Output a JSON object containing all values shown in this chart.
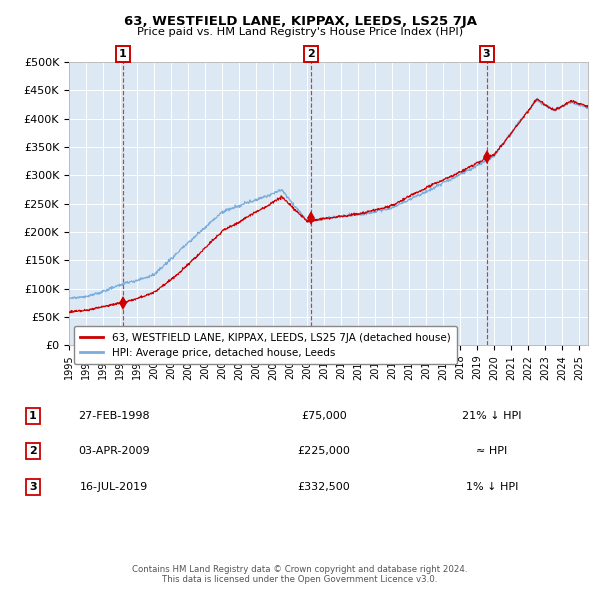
{
  "title": "63, WESTFIELD LANE, KIPPAX, LEEDS, LS25 7JA",
  "subtitle": "Price paid vs. HM Land Registry's House Price Index (HPI)",
  "sale1": {
    "date_num": 1998.15,
    "price": 75000,
    "label": "1",
    "date_str": "27-FEB-1998",
    "pct": "21% ↓ HPI"
  },
  "sale2": {
    "date_num": 2009.25,
    "price": 225000,
    "label": "2",
    "date_str": "03-APR-2009",
    "pct": "≈ HPI"
  },
  "sale3": {
    "date_num": 2019.54,
    "price": 332500,
    "label": "3",
    "date_str": "16-JUL-2019",
    "pct": "1% ↓ HPI"
  },
  "ylim": [
    0,
    500000
  ],
  "xlim": [
    1995.0,
    2025.5
  ],
  "background_color": "#dce9f5",
  "grid_color": "#ffffff",
  "line_red": "#cc0000",
  "line_blue": "#7aaddb",
  "legend_label_red": "63, WESTFIELD LANE, KIPPAX, LEEDS, LS25 7JA (detached house)",
  "legend_label_blue": "HPI: Average price, detached house, Leeds",
  "footer": "Contains HM Land Registry data © Crown copyright and database right 2024.\nThis data is licensed under the Open Government Licence v3.0.",
  "yticks": [
    0,
    50000,
    100000,
    150000,
    200000,
    250000,
    300000,
    350000,
    400000,
    450000,
    500000
  ],
  "ytick_labels": [
    "£0",
    "£50K",
    "£100K",
    "£150K",
    "£200K",
    "£250K",
    "£300K",
    "£350K",
    "£400K",
    "£450K",
    "£500K"
  ]
}
